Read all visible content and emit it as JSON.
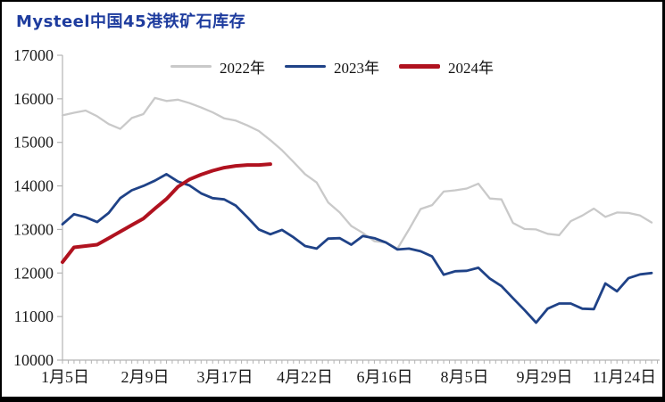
{
  "title": "Mysteel中国45港铁矿石库存",
  "title_color": "#1e3c9e",
  "chart_data": {
    "type": "line",
    "title": "Mysteel中国45港铁矿石库存",
    "x_tick_labels": [
      "1月5日",
      "2月9日",
      "3月17日",
      "4月22日",
      "6月16日",
      "8月5日",
      "9月29日",
      "11月24日"
    ],
    "y_ticks": [
      10000,
      11000,
      12000,
      13000,
      14000,
      15000,
      16000,
      17000
    ],
    "ylim": [
      10000,
      17000
    ],
    "grid": false,
    "legend_position": "top-center",
    "axis_color": "#b3b3b3",
    "tick_label_color": "#1a1a1a",
    "series": [
      {
        "name": "2022年",
        "color": "#c9c9c9",
        "width": 2.3,
        "values": [
          15620,
          15680,
          15730,
          15600,
          15420,
          15310,
          15560,
          15650,
          16020,
          15950,
          15980,
          15900,
          15800,
          15690,
          15550,
          15500,
          15390,
          15260,
          15050,
          14820,
          14550,
          14270,
          14080,
          13620,
          13390,
          13080,
          12920,
          12730,
          12700,
          12560,
          13000,
          13470,
          13560,
          13870,
          13900,
          13940,
          14050,
          13710,
          13690,
          13150,
          13010,
          13000,
          12900,
          12870,
          13190,
          13320,
          13480,
          13290,
          13390,
          13380,
          13320,
          13160
        ]
      },
      {
        "name": "2023年",
        "color": "#1f4287",
        "width": 2.8,
        "values": [
          13120,
          13350,
          13280,
          13170,
          13380,
          13720,
          13900,
          14000,
          14120,
          14270,
          14100,
          14010,
          13830,
          13720,
          13690,
          13550,
          13280,
          13000,
          12890,
          12990,
          12820,
          12620,
          12560,
          12790,
          12800,
          12650,
          12850,
          12800,
          12700,
          12540,
          12560,
          12500,
          12380,
          11960,
          12040,
          12050,
          12120,
          11870,
          11700,
          11420,
          11150,
          10860,
          11180,
          11300,
          11300,
          11180,
          11170,
          11760,
          11580,
          11880,
          11970,
          12000
        ]
      },
      {
        "name": "2024年",
        "color": "#b0121f",
        "width": 4,
        "values": [
          12250,
          12590,
          12620,
          12650,
          12800,
          12950,
          13100,
          13250,
          13480,
          13700,
          13980,
          14150,
          14260,
          14350,
          14420,
          14460,
          14480,
          14480,
          14500
        ]
      }
    ]
  }
}
